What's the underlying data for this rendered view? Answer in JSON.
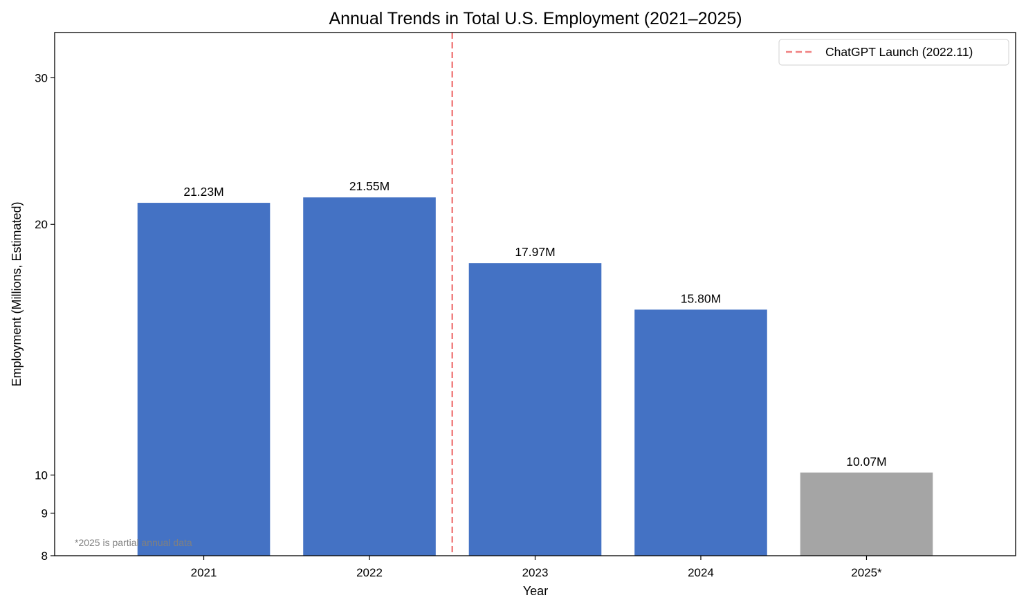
{
  "chart_data": {
    "type": "bar",
    "title": "Annual Trends in Total U.S. Employment (2021–2025)",
    "xlabel": "Year",
    "ylabel": "Employment (Millions, Estimated)",
    "y_scale": "log",
    "ylim": [
      8,
      34
    ],
    "yticks": [
      8,
      9,
      10,
      20,
      30
    ],
    "categories": [
      "2021",
      "2022",
      "2023",
      "2024",
      "2025*"
    ],
    "values": [
      21.23,
      21.55,
      17.97,
      15.8,
      10.07
    ],
    "value_labels": [
      "21.23M",
      "21.55M",
      "17.97M",
      "15.80M",
      "10.07M"
    ],
    "bar_colors": [
      "#4472C4",
      "#4472C4",
      "#4472C4",
      "#4472C4",
      "#A5A5A5"
    ],
    "vline": {
      "label": "ChatGPT Launch (2022.11)",
      "color": "#F08080",
      "style": "dashed",
      "between_categories": [
        "2022",
        "2023"
      ]
    },
    "legend_position": "top-right",
    "grid": false,
    "annotation": "*2025 is partial annual data"
  }
}
